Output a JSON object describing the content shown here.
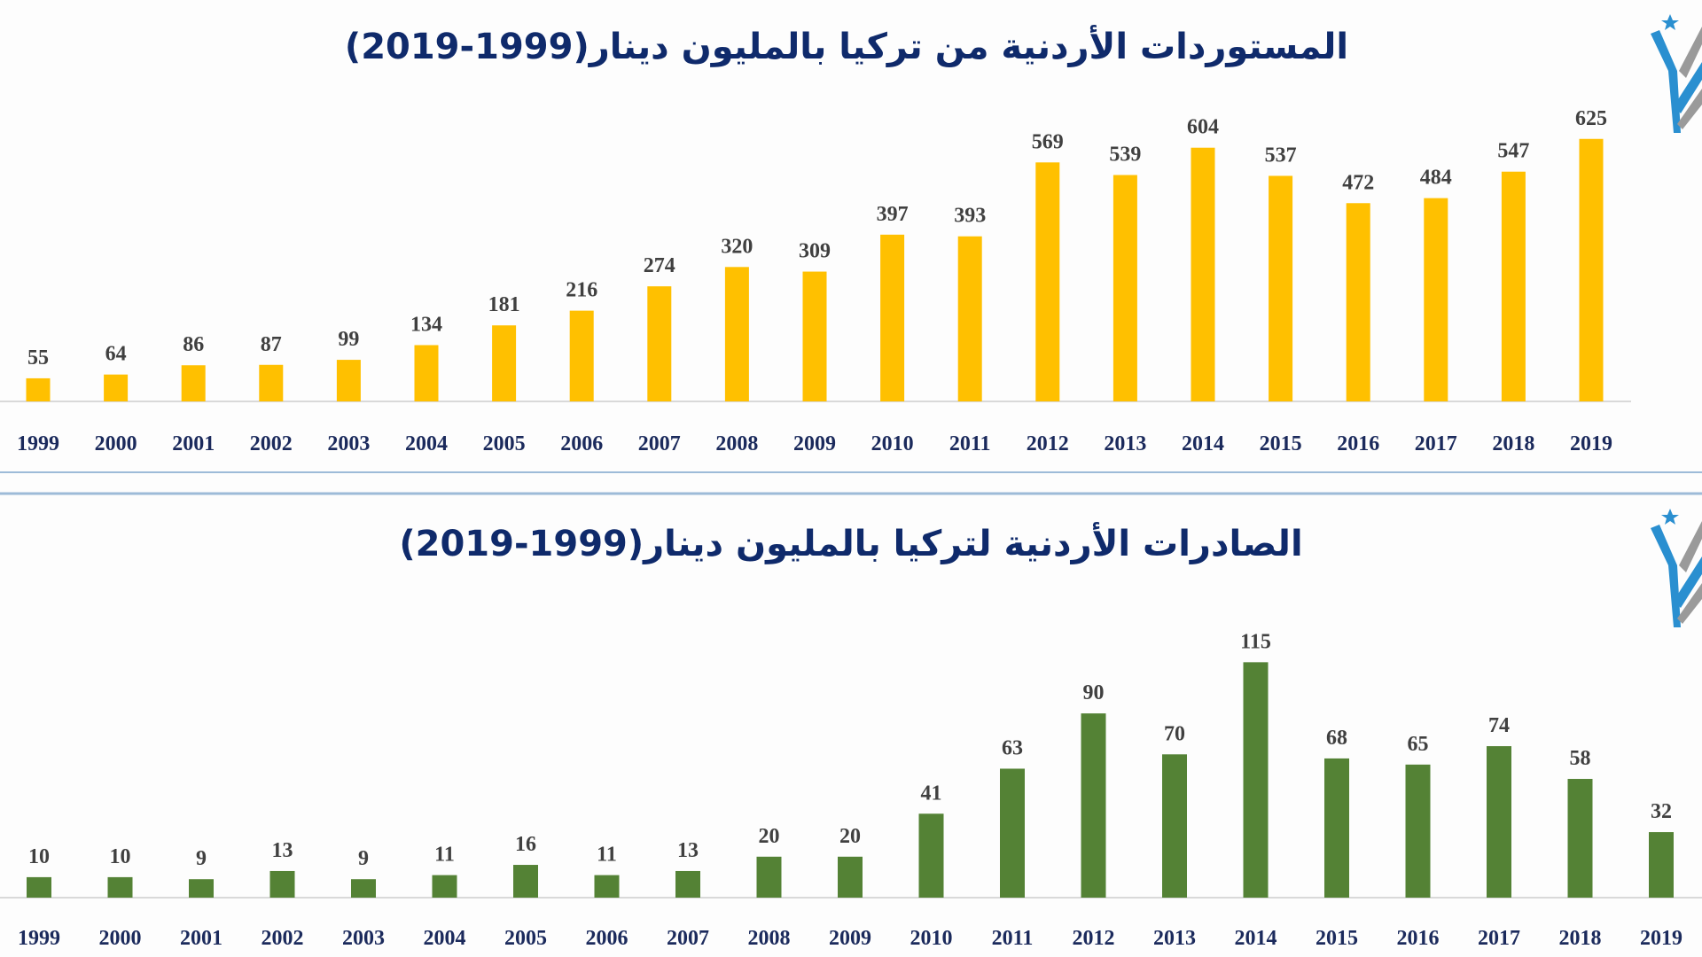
{
  "colors": {
    "imports": "#FFC000",
    "exports": "#548235",
    "title": "#0f2a6b",
    "separator": "#9dbbd8",
    "logo_blue": "#2a8fd0",
    "logo_gray": "#9a9a9a"
  },
  "logo": {
    "icon": "jordan-star-emblem"
  },
  "chart_data": [
    {
      "type": "bar",
      "title": "المستوردات الأردنية من تركيا بالمليون دينار(1999-2019)",
      "categories": [
        "1999",
        "2000",
        "2001",
        "2002",
        "2003",
        "2004",
        "2005",
        "2006",
        "2007",
        "2008",
        "2009",
        "2010",
        "2011",
        "2012",
        "2013",
        "2014",
        "2015",
        "2016",
        "2017",
        "2018",
        "2019"
      ],
      "values": [
        55,
        64,
        86,
        87,
        99,
        134,
        181,
        216,
        274,
        320,
        309,
        397,
        393,
        569,
        539,
        604,
        537,
        472,
        484,
        547,
        625
      ],
      "color": "#FFC000",
      "grid": false
    },
    {
      "type": "bar",
      "title": "الصادرات الأردنية لتركيا بالمليون دينار(1999-2019)",
      "categories": [
        "1999",
        "2000",
        "2001",
        "2002",
        "2003",
        "2004",
        "2005",
        "2006",
        "2007",
        "2008",
        "2009",
        "2010",
        "2011",
        "2012",
        "2013",
        "2014",
        "2015",
        "2016",
        "2017",
        "2018",
        "2019"
      ],
      "values": [
        10,
        10,
        9,
        13,
        9,
        11,
        16,
        11,
        13,
        20,
        20,
        41,
        63,
        90,
        70,
        115,
        68,
        65,
        74,
        58,
        32
      ],
      "color": "#548235",
      "grid": false
    }
  ]
}
